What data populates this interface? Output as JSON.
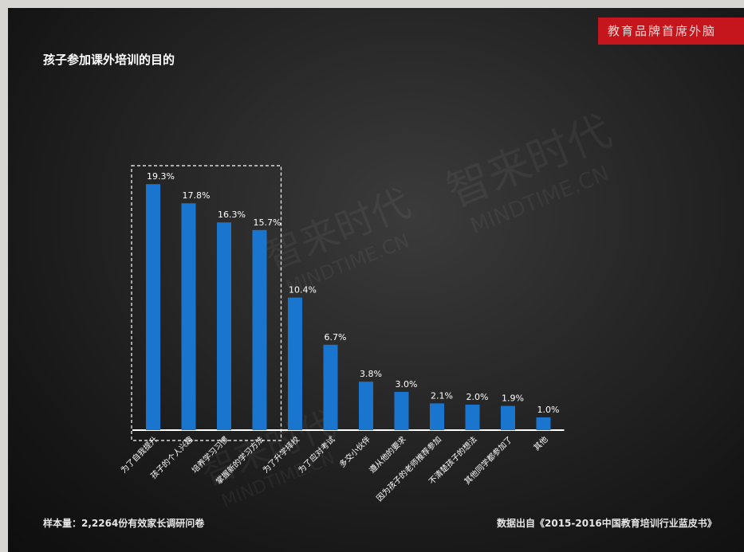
{
  "header": {
    "brand_tag": "教育品牌首席外脑"
  },
  "watermark": {
    "cn_text": "智来时代",
    "en_text": "MINDTIME.CN"
  },
  "footer": {
    "sample_note": "样本量：2,2264份有效家长调研问卷",
    "source_note": "数据出自《2015-2016中国教育培训行业蓝皮书》"
  },
  "colors": {
    "bar": "#1a75cf",
    "text": "#ffffff",
    "brand": "#c4161c"
  },
  "chart_data": {
    "type": "bar",
    "title": "孩子参加课外培训的目的",
    "xlabel": "",
    "ylabel": "",
    "unit": "%",
    "categories": [
      "为了自我提升",
      "孩子的个人兴趣",
      "培养学习习惯",
      "掌握新的学习方法",
      "为了升学择校",
      "为了应对考试",
      "多交小伙伴",
      "遵从他的要求",
      "因为孩子的老师推荐参加",
      "不清楚孩子的想法",
      "其他同学都参加了",
      "其他"
    ],
    "values": [
      19.3,
      17.8,
      16.3,
      15.7,
      10.4,
      6.7,
      3.8,
      3.0,
      2.1,
      2.0,
      1.9,
      1.0
    ],
    "value_labels": [
      "19.3%",
      "17.8%",
      "16.3%",
      "15.7%",
      "10.4%",
      "6.7%",
      "3.8%",
      "3.0%",
      "2.1%",
      "2.0%",
      "1.9%",
      "1.0%"
    ],
    "ylim": [
      0,
      20
    ],
    "highlighted_categories": [
      "为了自我提升",
      "孩子的个人兴趣",
      "培养学习习惯",
      "掌握新的学习方法"
    ],
    "grid": false,
    "legend": "none"
  }
}
